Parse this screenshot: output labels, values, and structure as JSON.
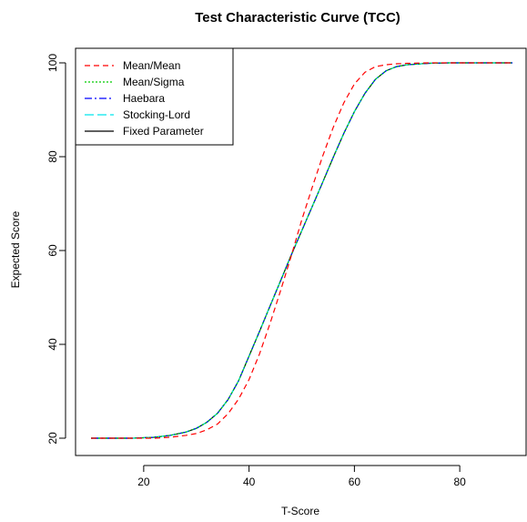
{
  "chart_data": {
    "type": "line",
    "title": "Test Characteristic Curve (TCC)",
    "xlabel": "T-Score",
    "ylabel": "Expected Score",
    "xlim": [
      10,
      90
    ],
    "ylim": [
      20,
      100
    ],
    "x_ticks": [
      20,
      40,
      60,
      80
    ],
    "y_ticks": [
      20,
      40,
      60,
      80,
      100
    ],
    "grid": false,
    "legend_position": "top-left",
    "x": [
      10,
      14,
      18,
      22,
      25,
      28,
      30,
      32,
      34,
      36,
      38,
      40,
      42,
      44,
      46,
      48,
      50,
      52,
      54,
      56,
      58,
      60,
      62,
      64,
      66,
      68,
      70,
      74,
      78,
      82,
      86,
      90
    ],
    "series": [
      {
        "name": "Mean/Mean",
        "color": "#ff0000",
        "dash": "6,4",
        "values": [
          20.0,
          20.0,
          20.0,
          20.0,
          20.2,
          20.6,
          21.0,
          21.8,
          23.0,
          25.2,
          28.3,
          32.5,
          38.0,
          44.5,
          51.5,
          58.8,
          66.5,
          73.5,
          80.2,
          86.3,
          91.5,
          95.5,
          98.0,
          99.2,
          99.6,
          99.8,
          99.9,
          100.0,
          100.0,
          100.0,
          100.0,
          100.0
        ]
      },
      {
        "name": "Mean/Sigma",
        "color": "#00cc00",
        "dash": "2,2",
        "values": [
          20.0,
          20.0,
          20.0,
          20.2,
          20.6,
          21.3,
          22.1,
          23.4,
          25.3,
          28.2,
          32.2,
          37.5,
          42.8,
          48.2,
          53.6,
          59.0,
          64.2,
          69.4,
          74.6,
          79.9,
          85.0,
          89.6,
          93.5,
          96.5,
          98.3,
          99.2,
          99.6,
          99.9,
          100.0,
          100.0,
          100.0,
          100.0
        ]
      },
      {
        "name": "Haebara",
        "color": "#0000ff",
        "dash": "8,3,2,3",
        "values": [
          20.0,
          20.0,
          20.0,
          20.2,
          20.6,
          21.3,
          22.1,
          23.4,
          25.3,
          28.2,
          32.2,
          37.5,
          42.8,
          48.2,
          53.6,
          59.0,
          64.2,
          69.4,
          74.6,
          79.9,
          85.0,
          89.6,
          93.5,
          96.5,
          98.3,
          99.2,
          99.6,
          99.9,
          100.0,
          100.0,
          100.0,
          100.0
        ]
      },
      {
        "name": "Stocking-Lord",
        "color": "#00e5ee",
        "dash": "10,4",
        "values": [
          20.0,
          20.0,
          20.0,
          20.2,
          20.6,
          21.3,
          22.1,
          23.4,
          25.3,
          28.2,
          32.2,
          37.5,
          42.8,
          48.2,
          53.6,
          59.0,
          64.2,
          69.4,
          74.6,
          79.9,
          85.0,
          89.6,
          93.5,
          96.5,
          98.3,
          99.2,
          99.6,
          99.9,
          100.0,
          100.0,
          100.0,
          100.0
        ]
      },
      {
        "name": "Fixed Parameter",
        "color": "#000000",
        "dash": "",
        "values": [
          20.0,
          20.0,
          20.0,
          20.2,
          20.6,
          21.3,
          22.1,
          23.4,
          25.3,
          28.2,
          32.2,
          37.5,
          42.8,
          48.2,
          53.6,
          59.0,
          64.2,
          69.4,
          74.6,
          79.9,
          85.0,
          89.6,
          93.5,
          96.5,
          98.3,
          99.2,
          99.6,
          99.9,
          100.0,
          100.0,
          100.0,
          100.0
        ]
      }
    ]
  }
}
